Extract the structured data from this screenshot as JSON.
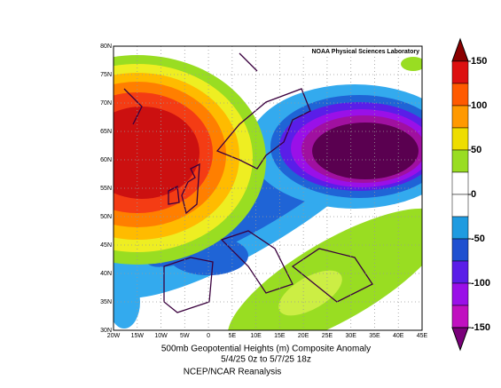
{
  "map": {
    "credit": "NOAA Physical Sciences Laboratory",
    "lat_labels": [
      "80N",
      "75N",
      "70N",
      "65N",
      "60N",
      "55N",
      "50N",
      "45N",
      "40N",
      "35N",
      "30N"
    ],
    "lon_labels": [
      "20W",
      "15W",
      "10W",
      "5W",
      "0",
      "5E",
      "10E",
      "15E",
      "20E",
      "25E",
      "30E",
      "35E",
      "40E",
      "45E"
    ],
    "caption": [
      "500mb Geopotential Heights (m)    Composite Anomaly",
      "5/4/25 0z  to 5/7/25 18z",
      "NCEP/NCAR Reanalysis"
    ],
    "colorbar": {
      "labels": [
        "150",
        "100",
        "50",
        "0",
        "-50",
        "-100",
        "-150"
      ]
    }
  }
}
